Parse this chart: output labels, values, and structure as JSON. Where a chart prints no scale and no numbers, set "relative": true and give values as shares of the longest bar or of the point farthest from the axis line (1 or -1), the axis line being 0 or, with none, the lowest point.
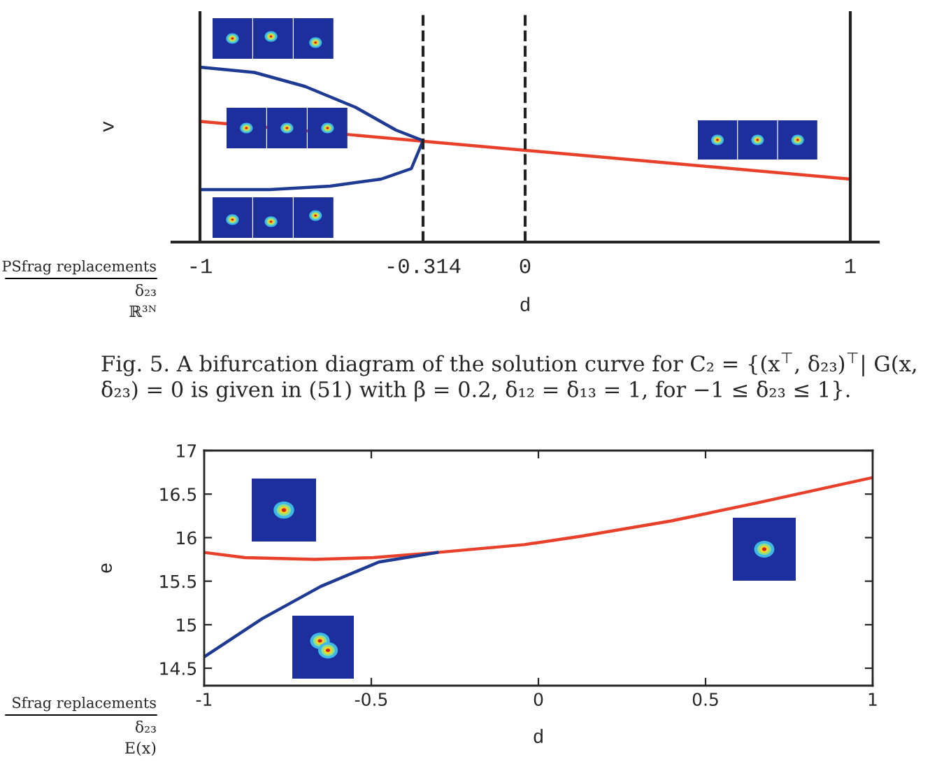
{
  "chart_data": [
    {
      "type": "line",
      "relative": true,
      "xlabel": "d",
      "ylabel": "v",
      "xlim": [
        -1.086,
        1.086
      ],
      "xticks": [
        -1,
        -0.314,
        0,
        1
      ],
      "series": [
        {
          "color": "#e8412b",
          "x": [
            -1,
            1
          ],
          "values": [
            0.69,
            0.36
          ]
        },
        {
          "color": "#1f3a93",
          "x": [
            -1,
            -0.833,
            -0.677,
            -0.521,
            -0.397,
            -0.314,
            -0.35,
            -0.443,
            -0.599,
            -0.786,
            -1
          ],
          "values": [
            1.0,
            0.97,
            0.89,
            0.77,
            0.64,
            0.58,
            0.42,
            0.36,
            0.32,
            0.3,
            0.3
          ]
        }
      ],
      "ref_lines": [
        {
          "axis": "x",
          "value": -1,
          "color": "#222222",
          "line_style": "solid"
        },
        {
          "axis": "x",
          "value": 1,
          "color": "#222222",
          "line_style": "solid"
        },
        {
          "axis": "x",
          "value": 0,
          "color": "#222222",
          "line_style": "dashed"
        },
        {
          "axis": "x",
          "value": -0.314,
          "color": "#222222",
          "line_style": "dashed"
        }
      ],
      "annotations": [
        "PSfrag replacements",
        "δ₂₃",
        "ℝ³ᴺ",
        "Fig. 5. A bifurcation diagram of the solution curve for C₂ = {(x$^{⊤}$, δ₂₃)$^{⊤}$| G(x, δ₂₃) = 0 is given in (51) with β = 0.2, δ₁₂ = δ₁₃ = 1, for −1 ≤ δ₂₃ ≤ 1}."
      ]
    },
    {
      "type": "line",
      "xlabel": "d",
      "ylabel": "e",
      "xlim": [
        -1,
        1
      ],
      "xticks": [
        -1,
        -0.5,
        0,
        0.5,
        1
      ],
      "ylim": [
        14.3,
        17
      ],
      "yticks": [
        14.5,
        15,
        15.5,
        16,
        16.5,
        17
      ],
      "series": [
        {
          "color": "#e8412b",
          "x": [
            -1,
            -0.878,
            -0.669,
            -0.494,
            -0.302,
            -0.041,
            0.133,
            0.395,
            0.656,
            1
          ],
          "values": [
            15.83,
            15.77,
            15.75,
            15.77,
            15.83,
            15.92,
            16.02,
            16.19,
            16.4,
            16.69
          ]
        },
        {
          "color": "#1f3a93",
          "x": [
            -1,
            -0.826,
            -0.651,
            -0.477,
            -0.302
          ],
          "values": [
            14.63,
            15.07,
            15.44,
            15.72,
            15.83
          ]
        }
      ],
      "annotations": [
        "Sfrag replacements",
        "δ₂₃",
        "E(x)"
      ]
    }
  ]
}
